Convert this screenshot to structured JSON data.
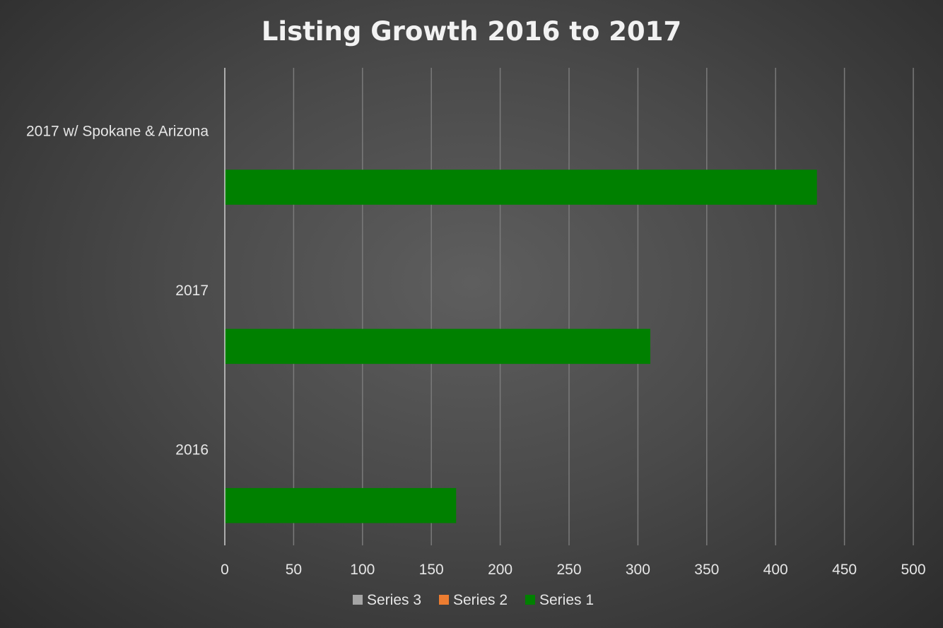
{
  "chart_data": {
    "type": "bar",
    "orientation": "horizontal",
    "title": "Listing Growth 2016 to 2017",
    "categories": [
      "2016",
      "2017",
      "2017 w/ Spokane & Arizona"
    ],
    "series": [
      {
        "name": "Series 1",
        "values": [
          168,
          309,
          430
        ],
        "color": "#008000"
      },
      {
        "name": "Series 2",
        "values": [
          null,
          null,
          null
        ],
        "color": "#ed7d31"
      },
      {
        "name": "Series 3",
        "values": [
          null,
          null,
          null
        ],
        "color": "#a5a5a5"
      }
    ],
    "xlim": [
      0,
      500
    ],
    "xticks": [
      "0",
      "50",
      "100",
      "150",
      "200",
      "250",
      "300",
      "350",
      "400",
      "450",
      "500"
    ],
    "grid": true,
    "legend_position": "bottom",
    "legend_order": [
      "Series 3",
      "Series 2",
      "Series 1"
    ]
  }
}
